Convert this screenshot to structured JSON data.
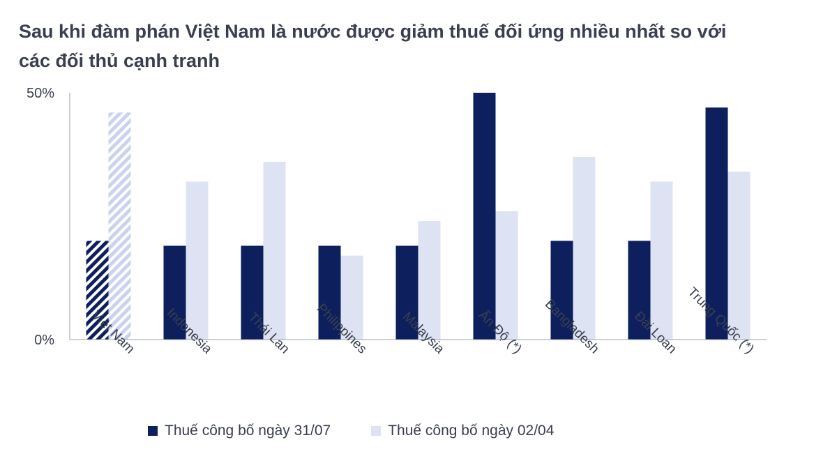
{
  "title_lines": [
    "Sau khi đàm phán Việt Nam là nước được giảm thuế đối ứng nhiều nhất so với",
    "các đối thủ cạnh tranh"
  ],
  "colors": {
    "series1": "#0d1f5c",
    "series2": "#dde3f3",
    "text": "#3a3f4f",
    "axis": "#9aa0aa"
  },
  "chart_data": {
    "type": "bar",
    "title": "Sau khi đàm phán Việt Nam là nước được giảm thuế đối ứng nhiều nhất so với các đối thủ cạnh tranh",
    "categories": [
      "Việt Nam",
      "Indonesia",
      "Thái Lan",
      "Philippines",
      "Malaysia",
      "Ấn Độ (*)",
      "Bangladesh",
      "Đài Loan",
      "Trung Quốc (*)"
    ],
    "series": [
      {
        "name": "Thuế công bố ngày 31/07",
        "values": [
          20,
          19,
          19,
          19,
          19,
          50,
          20,
          20,
          47
        ]
      },
      {
        "name": "Thuế công bố ngày 02/04",
        "values": [
          46,
          32,
          36,
          17,
          24,
          26,
          37,
          32,
          34
        ]
      }
    ],
    "hatched_category": "Việt Nam",
    "ylim": [
      0,
      50
    ],
    "yticks": [
      "0%",
      "50%"
    ],
    "xlabel": "",
    "ylabel": "",
    "legend_position": "bottom",
    "grid": false
  }
}
